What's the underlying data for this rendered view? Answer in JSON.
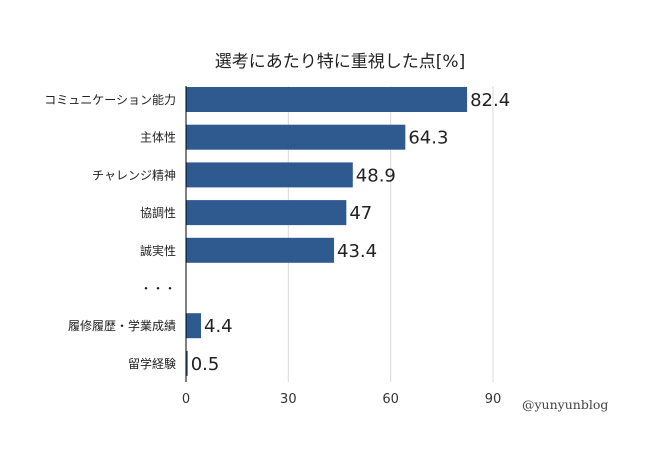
{
  "chart_data": {
    "type": "bar",
    "orientation": "horizontal",
    "title": "選考にあたり特に重視した点[%]",
    "categories": [
      "コミュニケーション能力",
      "主体性",
      "チャレンジ精神",
      "協調性",
      "誠実性",
      "・・・",
      "履修履歴・学業成績",
      "留学経験"
    ],
    "values": [
      82.4,
      64.3,
      48.9,
      47,
      43.4,
      null,
      4.4,
      0.5
    ],
    "value_labels": [
      "82.4",
      "64.3",
      "48.9",
      "47",
      "43.4",
      "",
      "4.4",
      "0.5"
    ],
    "xlim": [
      0,
      90
    ],
    "xticks": [
      "0",
      "30",
      "60",
      "90"
    ],
    "xlabel": "",
    "ylabel": "",
    "grid": "vertical",
    "legend": "none",
    "bar_color": "#2f5a90"
  },
  "watermark": "@yunyunblog"
}
